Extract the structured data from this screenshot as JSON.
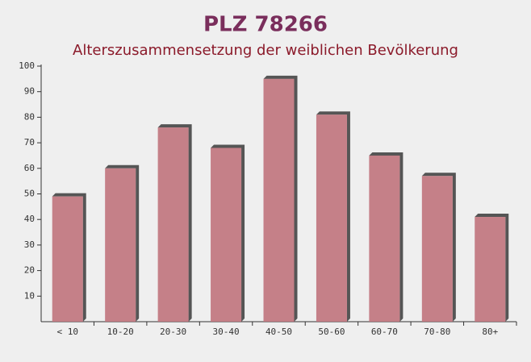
{
  "chart_data": {
    "type": "bar",
    "title": "PLZ 78266",
    "subtitle": "Alterszusammensetzung der weiblichen Bevölkerung",
    "categories": [
      "< 10",
      "10-20",
      "20-30",
      "30-40",
      "40-50",
      "50-60",
      "60-70",
      "70-80",
      "80+"
    ],
    "values": [
      49,
      60,
      76,
      68,
      95,
      81,
      65,
      57,
      41
    ],
    "color": "#c0737c",
    "ylim": [
      0,
      100
    ],
    "yticks": [
      10,
      20,
      30,
      40,
      50,
      60,
      70,
      80,
      90,
      100
    ]
  }
}
